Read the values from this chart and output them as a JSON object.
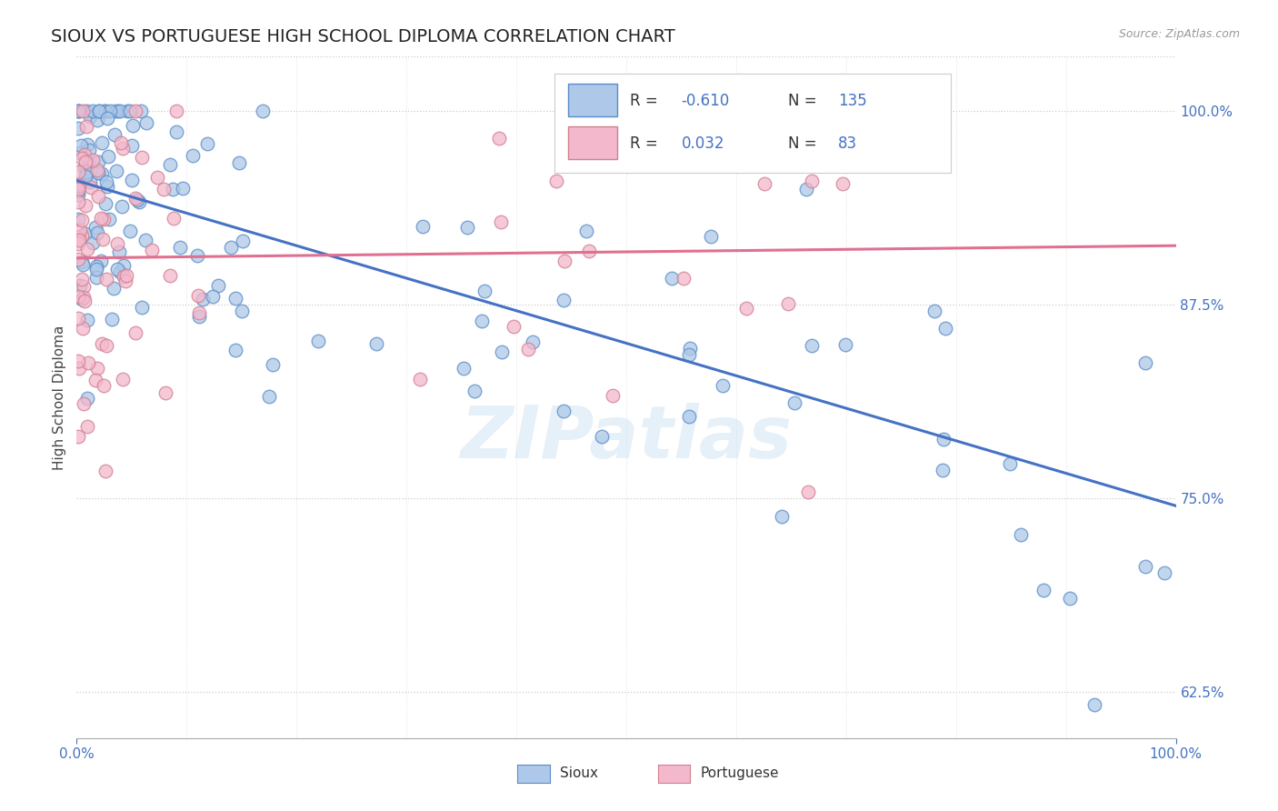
{
  "title": "SIOUX VS PORTUGUESE HIGH SCHOOL DIPLOMA CORRELATION CHART",
  "source_text": "Source: ZipAtlas.com",
  "ylabel": "High School Diploma",
  "xlim": [
    0,
    1.0
  ],
  "ylim": [
    0.595,
    1.035
  ],
  "right_yticks": [
    0.625,
    0.75,
    0.875,
    1.0
  ],
  "right_yticklabels": [
    "62.5%",
    "75.0%",
    "87.5%",
    "100.0%"
  ],
  "sioux_color": "#adc8e8",
  "sioux_edge_color": "#5b8dc8",
  "portuguese_color": "#f4b8cc",
  "portuguese_edge_color": "#d08090",
  "sioux_line_color": "#4472c4",
  "portuguese_line_color": "#e07090",
  "tick_label_color": "#4472c4",
  "sioux_R": -0.61,
  "sioux_N": 135,
  "portuguese_R": 0.032,
  "portuguese_N": 83,
  "watermark": "ZIPatlas",
  "legend_label_sioux": "Sioux",
  "legend_label_portuguese": "Portuguese",
  "sioux_line_intercept": 0.955,
  "sioux_line_slope": -0.21,
  "portuguese_line_intercept": 0.905,
  "portuguese_line_slope": 0.008,
  "grid_color": "#cccccc",
  "scatter_size": 110,
  "scatter_alpha": 0.75,
  "scatter_lw": 1.0
}
